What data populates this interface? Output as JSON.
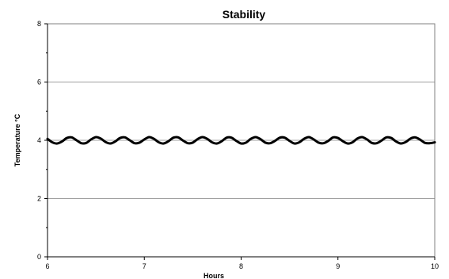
{
  "chart_data": {
    "type": "line",
    "title": "Stability",
    "xlabel": "Hours",
    "ylabel": "Temperature °C",
    "xlim": [
      6,
      10
    ],
    "ylim": [
      0,
      8
    ],
    "x_ticks": [
      6,
      7,
      8,
      9,
      10
    ],
    "x_tick_labels": [
      "6",
      "7",
      "8",
      "9",
      "10"
    ],
    "y_ticks": [
      0,
      2,
      4,
      6,
      8
    ],
    "y_tick_labels": [
      "0",
      "2",
      "4",
      "6",
      "8"
    ],
    "y_minor_step": 1,
    "grid": {
      "horizontal_major": true,
      "vertical": false
    },
    "legend": "none",
    "series": [
      {
        "color": "#000000",
        "x": [
          6.0,
          6.05,
          6.1,
          6.15,
          6.2,
          6.25,
          6.3,
          6.35,
          6.4,
          6.45,
          6.5,
          6.55,
          6.6,
          6.65,
          6.7,
          6.75,
          6.8,
          6.85,
          6.9,
          6.95,
          7.0,
          7.05,
          7.1,
          7.15,
          7.2,
          7.25,
          7.3,
          7.35,
          7.4,
          7.45,
          7.5,
          7.55,
          7.6,
          7.65,
          7.7,
          7.75,
          7.8,
          7.85,
          7.9,
          7.95,
          8.0,
          8.05,
          8.1,
          8.15,
          8.2,
          8.25,
          8.3,
          8.35,
          8.4,
          8.45,
          8.5,
          8.55,
          8.6,
          8.65,
          8.7,
          8.75,
          8.8,
          8.85,
          8.9,
          8.95,
          9.0,
          9.05,
          9.1,
          9.15,
          9.2,
          9.25,
          9.3,
          9.35,
          9.4,
          9.45,
          9.5,
          9.55,
          9.6,
          9.65,
          9.7,
          9.75,
          9.8,
          9.85,
          9.9,
          9.95,
          10.0
        ],
        "y": [
          4.05,
          3.93,
          3.89,
          3.96,
          4.08,
          4.1,
          4.0,
          3.9,
          3.91,
          4.03,
          4.11,
          4.06,
          3.94,
          3.89,
          3.96,
          4.08,
          4.1,
          4.0,
          3.9,
          3.92,
          4.03,
          4.11,
          4.05,
          3.93,
          3.89,
          3.97,
          4.09,
          4.1,
          3.99,
          3.9,
          3.92,
          4.04,
          4.11,
          4.05,
          3.93,
          3.89,
          3.97,
          4.09,
          4.09,
          3.98,
          3.89,
          3.92,
          4.05,
          4.11,
          4.04,
          3.92,
          3.9,
          3.98,
          4.09,
          4.09,
          3.98,
          3.89,
          3.93,
          4.05,
          4.11,
          4.03,
          3.92,
          3.9,
          3.98,
          4.1,
          4.08,
          3.97,
          3.89,
          3.93,
          4.06,
          4.11,
          4.03,
          3.91,
          3.9,
          3.99,
          4.1,
          4.08,
          3.96,
          3.89,
          3.94,
          4.06,
          4.1,
          4.02,
          3.91,
          3.9,
          3.93
        ]
      }
    ]
  }
}
